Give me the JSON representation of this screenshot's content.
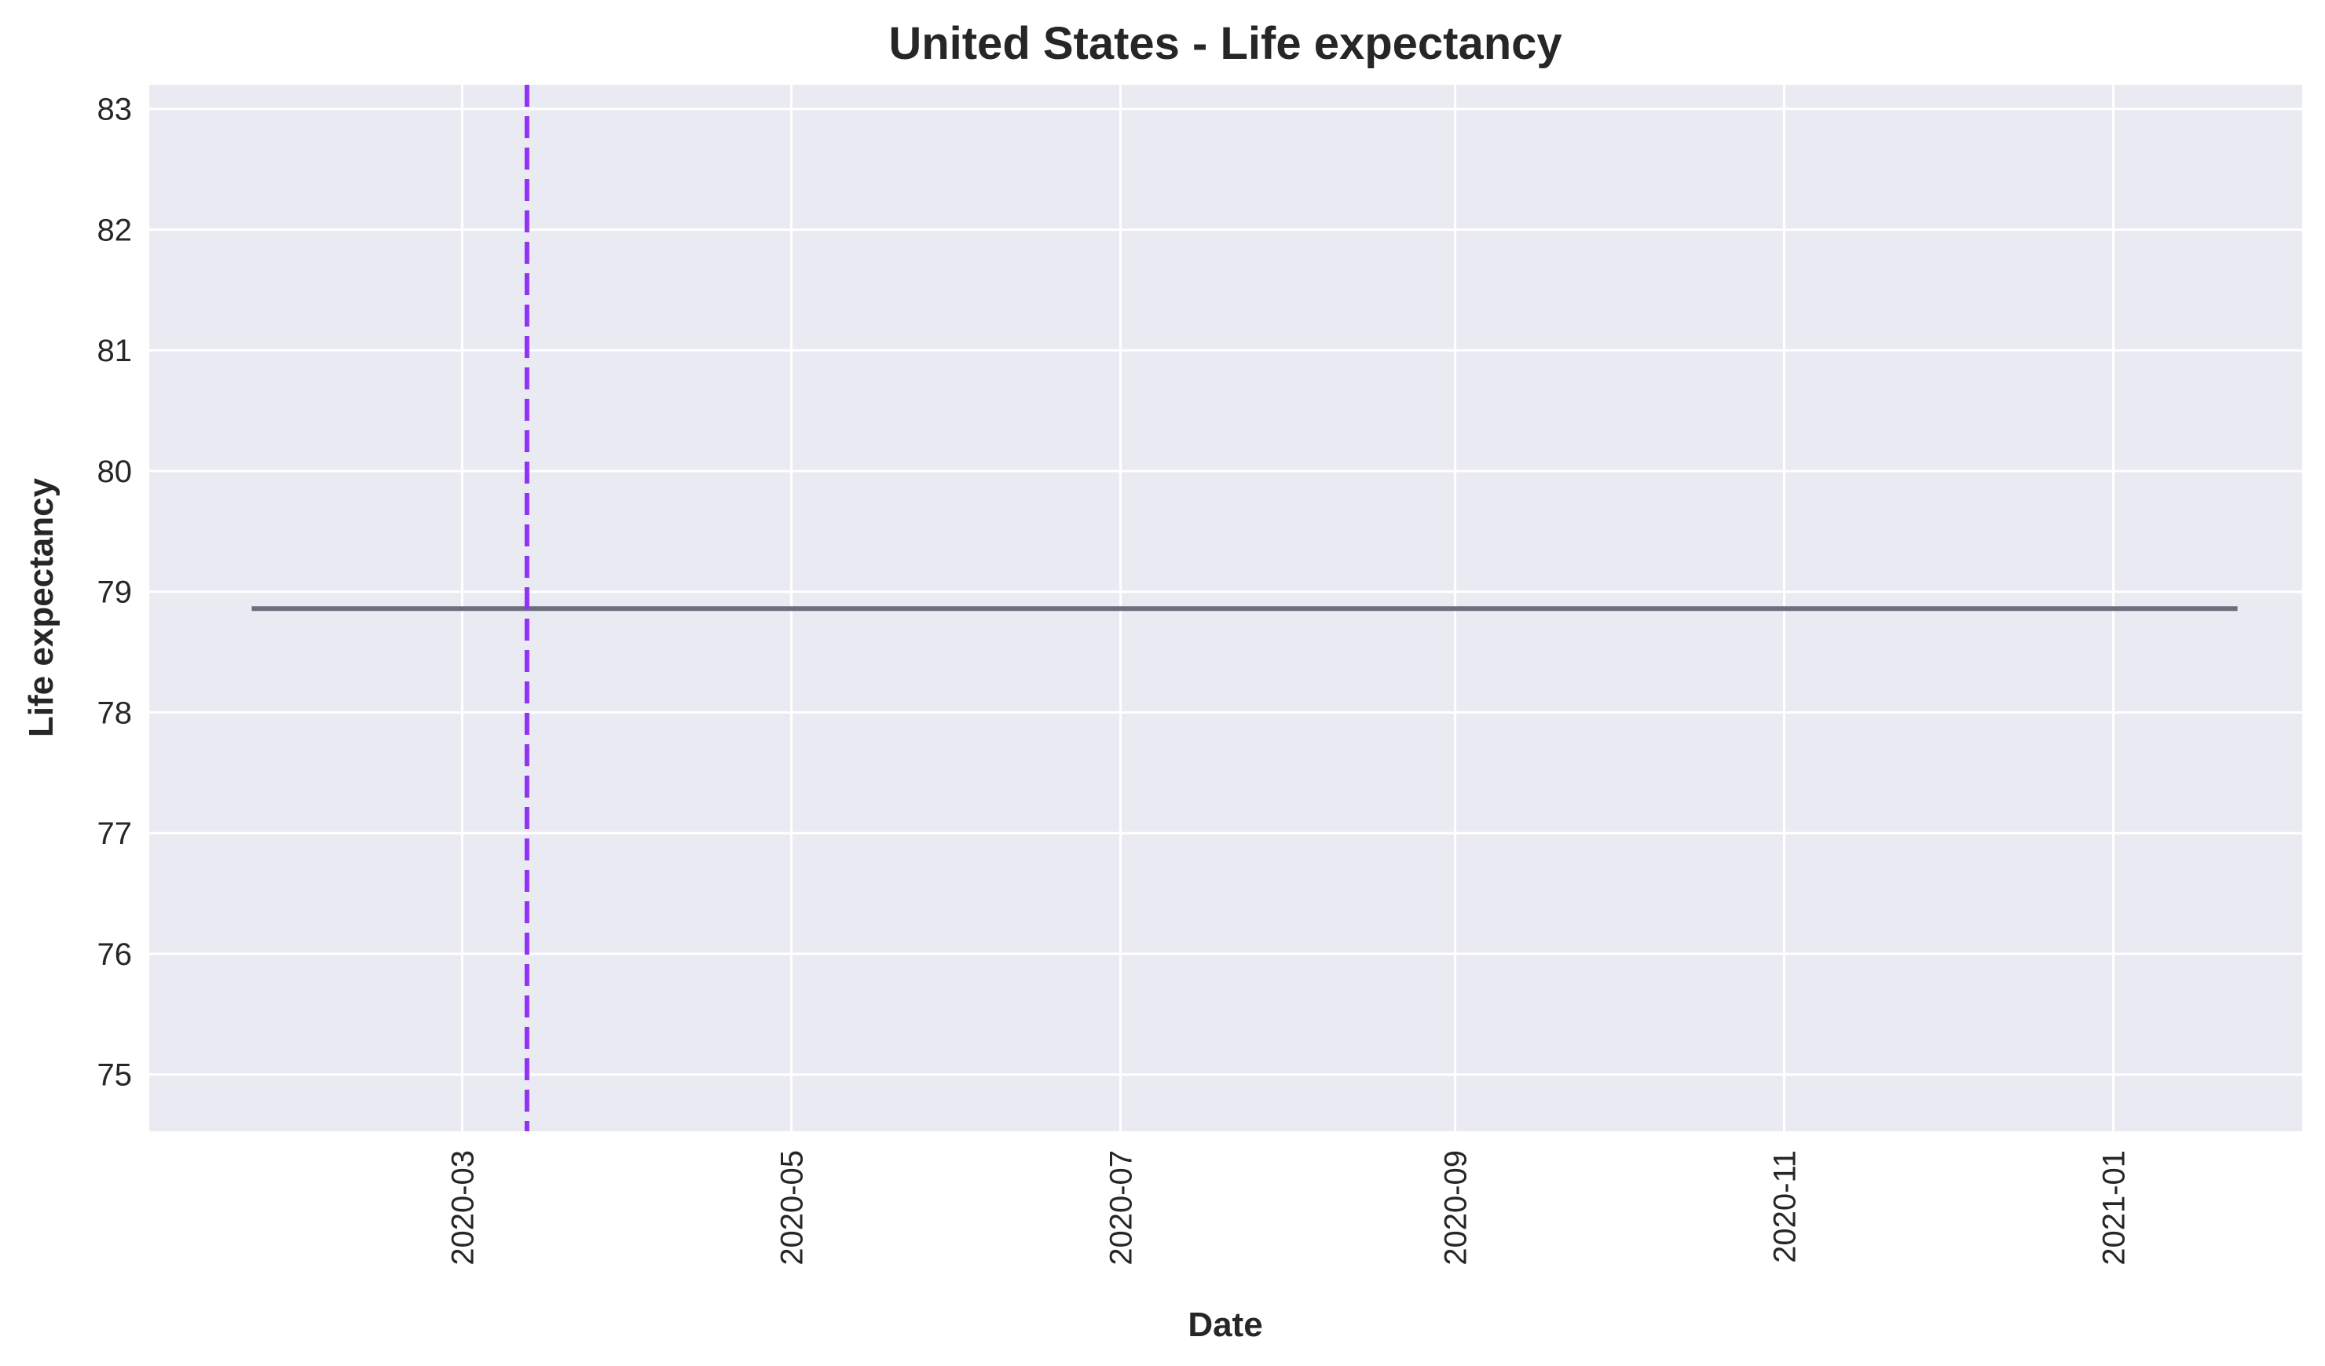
{
  "chart_data": {
    "type": "line",
    "title": "United States - Life expectancy",
    "xlabel": "Date",
    "ylabel": "Life expectancy",
    "x_axis_type": "date",
    "xlim": [
      "2020-01-03",
      "2021-02-05"
    ],
    "ylim": [
      74.53,
      83.2
    ],
    "x_ticks": [
      "2020-03",
      "2020-05",
      "2020-07",
      "2020-09",
      "2020-11",
      "2021-01"
    ],
    "y_ticks": [
      75,
      76,
      77,
      78,
      79,
      80,
      81,
      82,
      83
    ],
    "grid": true,
    "legend": "none",
    "series": [
      {
        "color": "#6b6f7b",
        "x": [
          "2020-01-22",
          "2021-01-24"
        ],
        "values": [
          78.86,
          78.86
        ]
      }
    ],
    "vlines": [
      {
        "x": "2020-03-13",
        "color": "#9133f5",
        "style": "dashed"
      }
    ]
  }
}
